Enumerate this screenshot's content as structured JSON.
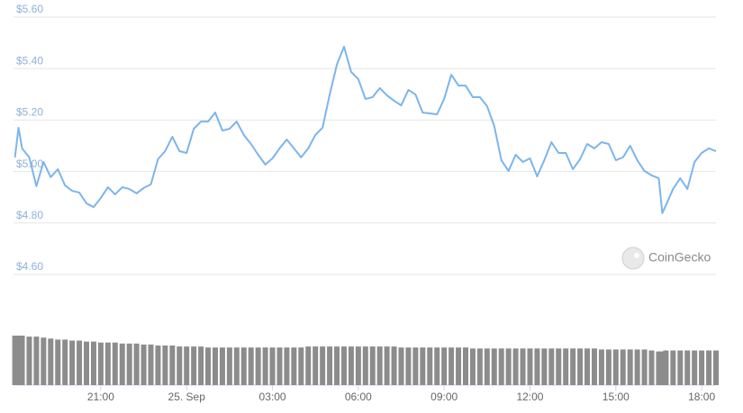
{
  "chart_data": {
    "type": "line",
    "watermark": "CoinGecko",
    "x": [
      -6,
      -5.875,
      -5.75,
      -5.5,
      -5.25,
      -5,
      -4.75,
      -4.5,
      -4.25,
      -4,
      -3.75,
      -3.5,
      -3.25,
      -3,
      -2.75,
      -2.5,
      -2.25,
      -2,
      -1.75,
      -1.5,
      -1.25,
      -1,
      -0.75,
      -0.5,
      -0.25,
      0,
      0.25,
      0.5,
      0.75,
      1,
      1.25,
      1.5,
      1.75,
      2,
      2.25,
      2.5,
      2.75,
      3,
      3.25,
      3.5,
      3.75,
      4,
      4.25,
      4.5,
      4.75,
      5,
      5.25,
      5.5,
      5.75,
      6,
      6.25,
      6.5,
      6.75,
      7,
      7.25,
      7.5,
      7.75,
      8,
      8.25,
      8.5,
      8.75,
      9,
      9.25,
      9.5,
      9.75,
      10,
      10.25,
      10.5,
      10.75,
      11,
      11.25,
      11.5,
      11.75,
      12,
      12.25,
      12.5,
      12.75,
      13,
      13.25,
      13.5,
      13.75,
      14,
      14.25,
      14.5,
      14.75,
      15,
      15.25,
      15.5,
      15.75,
      16,
      16.25,
      16.5,
      16.625,
      16.75,
      17,
      17.25,
      17.5,
      17.75,
      18,
      18.25,
      18.5
    ],
    "series": [
      {
        "color": "#7cb5ec",
        "values": [
          5.055,
          5.17,
          5.09,
          5.055,
          4.943,
          5.037,
          4.978,
          5.009,
          4.946,
          4.925,
          4.918,
          4.876,
          4.862,
          4.897,
          4.939,
          4.911,
          4.939,
          4.932,
          4.915,
          4.936,
          4.95,
          5.048,
          5.079,
          5.135,
          5.079,
          5.072,
          5.166,
          5.194,
          5.194,
          5.229,
          5.159,
          5.166,
          5.194,
          5.142,
          5.107,
          5.065,
          5.027,
          5.051,
          5.09,
          5.124,
          5.09,
          5.055,
          5.09,
          5.142,
          5.17,
          5.299,
          5.415,
          5.485,
          5.387,
          5.359,
          5.282,
          5.289,
          5.324,
          5.296,
          5.275,
          5.257,
          5.317,
          5.299,
          5.229,
          5.226,
          5.222,
          5.282,
          5.376,
          5.334,
          5.334,
          5.289,
          5.289,
          5.254,
          5.177,
          5.044,
          5.002,
          5.065,
          5.037,
          5.051,
          4.981,
          5.044,
          5.114,
          5.072,
          5.072,
          5.009,
          5.048,
          5.107,
          5.09,
          5.114,
          5.107,
          5.044,
          5.055,
          5.1,
          5.044,
          5.002,
          4.985,
          4.974,
          4.838,
          4.869,
          4.932,
          4.974,
          4.932,
          5.037,
          5.072,
          5.09,
          5.079
        ]
      },
      {
        "type": "bar",
        "axis": "y2",
        "color": "#8c8c8c",
        "values": [
          50,
          50,
          50,
          49,
          49,
          48,
          47,
          46,
          46,
          45,
          45,
          44,
          44,
          43,
          43,
          43,
          42,
          42,
          42,
          41,
          41,
          40,
          40,
          40,
          39,
          39,
          39,
          39,
          38,
          38,
          38,
          38,
          38,
          38,
          38,
          38,
          38,
          38,
          38,
          38,
          38,
          38,
          39,
          39,
          39,
          39,
          39,
          39,
          39,
          39,
          39,
          39,
          39,
          39,
          39,
          38,
          38,
          38,
          38,
          38,
          38,
          38,
          38,
          38,
          38,
          37,
          37,
          37,
          37,
          37,
          37,
          37,
          37,
          37,
          37,
          37,
          37,
          37,
          37,
          37,
          37,
          37,
          37,
          36,
          36,
          36,
          36,
          36,
          36,
          36,
          35,
          34,
          34,
          35,
          35,
          35,
          35,
          35,
          35,
          35,
          35
        ]
      }
    ],
    "xlim": [
      -6.05,
      18.5
    ],
    "xticks": [
      {
        "value": -3,
        "label": "21:00"
      },
      {
        "value": 0,
        "label": "25. Sep"
      },
      {
        "value": 3,
        "label": "03:00"
      },
      {
        "value": 6,
        "label": "06:00"
      },
      {
        "value": 9,
        "label": "09:00"
      },
      {
        "value": 12,
        "label": "12:00"
      },
      {
        "value": 15,
        "label": "15:00"
      },
      {
        "value": 18,
        "label": "18:00"
      }
    ],
    "ylim": [
      4.6,
      5.6
    ],
    "yticks": [
      {
        "value": 4.6,
        "label": "$4.60"
      },
      {
        "value": 4.8,
        "label": "$4.80"
      },
      {
        "value": 5.0,
        "label": "$5.00"
      },
      {
        "value": 5.2,
        "label": "$5.20"
      },
      {
        "value": 5.4,
        "label": "$5.40"
      },
      {
        "value": 5.6,
        "label": "$5.60"
      }
    ],
    "y2lim": [
      0,
      100
    ],
    "grid": true
  }
}
